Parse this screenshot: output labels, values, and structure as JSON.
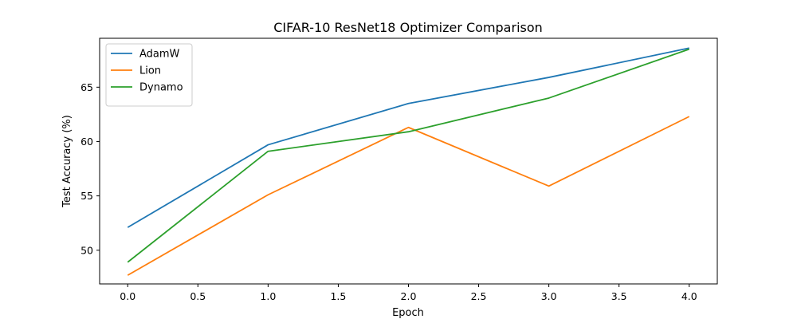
{
  "chart_data": {
    "type": "line",
    "title": "CIFAR-10 ResNet18 Optimizer Comparison",
    "xlabel": "Epoch",
    "ylabel": "Test Accuracy (%)",
    "x": [
      0,
      1,
      2,
      3,
      4
    ],
    "xlim": [
      -0.2,
      4.2
    ],
    "ylim": [
      46.9,
      69.5
    ],
    "xticks": [
      0.0,
      0.5,
      1.0,
      1.5,
      2.0,
      2.5,
      3.0,
      3.5,
      4.0
    ],
    "xtick_labels": [
      "0.0",
      "0.5",
      "1.0",
      "1.5",
      "2.0",
      "2.5",
      "3.0",
      "3.5",
      "4.0"
    ],
    "yticks": [
      50,
      55,
      60,
      65
    ],
    "ytick_labels": [
      "50",
      "55",
      "60",
      "65"
    ],
    "grid": false,
    "legend_position": "top-left",
    "series": [
      {
        "name": "AdamW",
        "color": "#1f77b4",
        "values": [
          52.1,
          59.7,
          63.5,
          65.9,
          68.6
        ]
      },
      {
        "name": "Lion",
        "color": "#ff7f0e",
        "values": [
          47.7,
          55.1,
          61.3,
          55.9,
          62.3
        ]
      },
      {
        "name": "Dynamo",
        "color": "#2ca02c",
        "values": [
          48.9,
          59.1,
          60.9,
          64.0,
          68.5
        ]
      }
    ]
  }
}
